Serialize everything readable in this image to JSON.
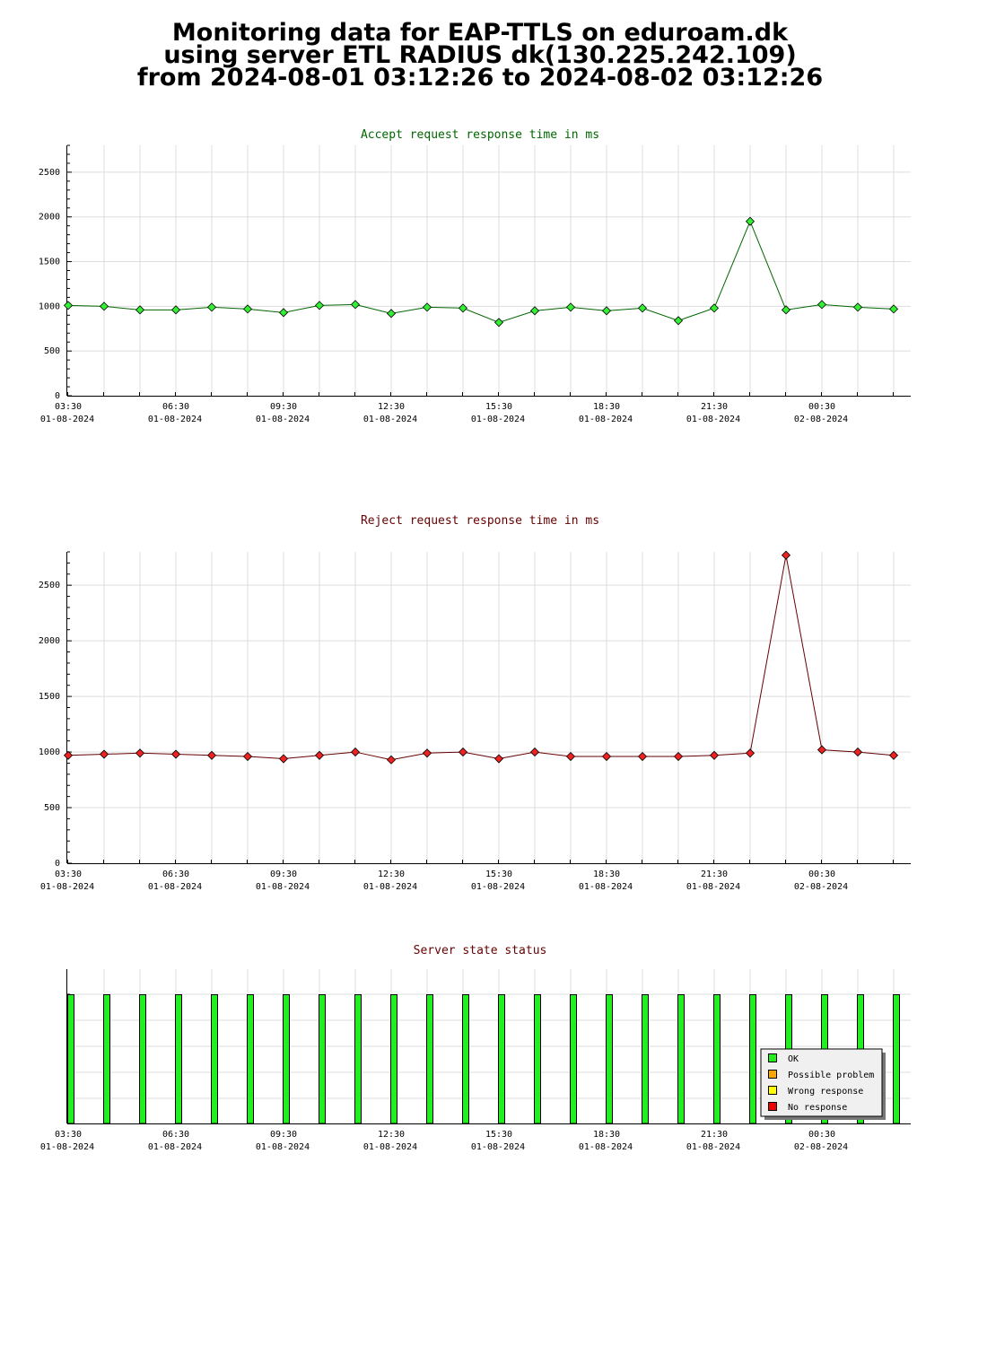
{
  "header": {
    "line1": "Monitoring data for EAP-TTLS on eduroam.dk",
    "line2": "using server ETL RADIUS dk(130.225.242.109)",
    "line3": "from 2024-08-01 03:12:26 to 2024-08-02 03:12:26"
  },
  "colors": {
    "accept_title": "#006600",
    "reject_title": "#660000",
    "status_title": "#660000",
    "accept_line": "#006600",
    "accept_marker": "#33ee33",
    "reject_line": "#660000",
    "reject_marker": "#ee2222",
    "ok": "#22ee22",
    "possible_problem": "#ffa500",
    "wrong_response": "#ffff00",
    "no_response": "#ee0000",
    "grid": "#dddddd"
  },
  "x_ticks": [
    {
      "time": "03:30",
      "date": "01-08-2024"
    },
    {
      "time": "06:30",
      "date": "01-08-2024"
    },
    {
      "time": "09:30",
      "date": "01-08-2024"
    },
    {
      "time": "12:30",
      "date": "01-08-2024"
    },
    {
      "time": "15:30",
      "date": "01-08-2024"
    },
    {
      "time": "18:30",
      "date": "01-08-2024"
    },
    {
      "time": "21:30",
      "date": "01-08-2024"
    },
    {
      "time": "00:30",
      "date": "02-08-2024"
    }
  ],
  "chart_data": [
    {
      "type": "line",
      "title": "Accept request response time in ms",
      "x": [
        "03:30",
        "04:30",
        "05:30",
        "06:30",
        "07:30",
        "08:30",
        "09:30",
        "10:30",
        "11:30",
        "12:30",
        "13:30",
        "14:30",
        "15:30",
        "16:30",
        "17:30",
        "18:30",
        "19:30",
        "20:30",
        "21:30",
        "22:30",
        "23:30",
        "00:30",
        "01:30",
        "02:30"
      ],
      "values": [
        1010,
        1000,
        960,
        960,
        990,
        970,
        930,
        1010,
        1020,
        920,
        990,
        980,
        820,
        950,
        990,
        950,
        980,
        840,
        980,
        1950,
        960,
        1020,
        990,
        970
      ],
      "ylim": [
        0,
        2800
      ],
      "yticks": [
        0,
        500,
        1000,
        1500,
        2000,
        2500
      ],
      "grid": true
    },
    {
      "type": "line",
      "title": "Reject request response time in ms",
      "x": [
        "03:30",
        "04:30",
        "05:30",
        "06:30",
        "07:30",
        "08:30",
        "09:30",
        "10:30",
        "11:30",
        "12:30",
        "13:30",
        "14:30",
        "15:30",
        "16:30",
        "17:30",
        "18:30",
        "19:30",
        "20:30",
        "21:30",
        "22:30",
        "23:30",
        "00:30",
        "01:30",
        "02:30"
      ],
      "values": [
        970,
        980,
        990,
        980,
        970,
        960,
        940,
        970,
        1000,
        930,
        990,
        1000,
        940,
        1000,
        960,
        960,
        960,
        960,
        970,
        990,
        2770,
        1020,
        1000,
        970
      ],
      "ylim": [
        0,
        2800
      ],
      "yticks": [
        0,
        500,
        1000,
        1500,
        2000,
        2500
      ],
      "grid": true
    },
    {
      "type": "bar",
      "title": "Server state status",
      "x": [
        "03:30",
        "04:30",
        "05:30",
        "06:30",
        "07:30",
        "08:30",
        "09:30",
        "10:30",
        "11:30",
        "12:30",
        "13:30",
        "14:30",
        "15:30",
        "16:30",
        "17:30",
        "18:30",
        "19:30",
        "20:30",
        "21:30",
        "22:30",
        "23:30",
        "00:30",
        "01:30",
        "02:30"
      ],
      "status": [
        "OK",
        "OK",
        "OK",
        "OK",
        "OK",
        "OK",
        "OK",
        "OK",
        "OK",
        "OK",
        "OK",
        "OK",
        "OK",
        "OK",
        "OK",
        "OK",
        "OK",
        "OK",
        "OK",
        "OK",
        "OK",
        "OK",
        "OK",
        "OK"
      ],
      "legend": [
        "OK",
        "Possible problem",
        "Wrong response",
        "No response"
      ],
      "legend_position": "bottom-right",
      "grid": true
    }
  ]
}
